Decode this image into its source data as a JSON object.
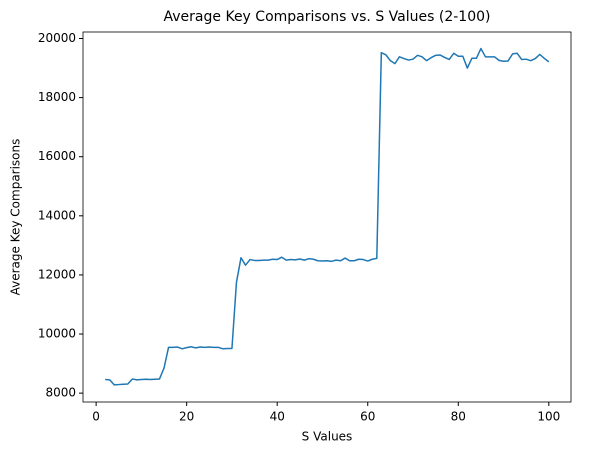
{
  "chart_data": {
    "type": "line",
    "title": "Average Key Comparisons vs. S Values (2-100)",
    "x_label": "S Values",
    "y_label": "Average Key Comparisons",
    "x": [
      2,
      3,
      4,
      5,
      6,
      7,
      8,
      9,
      10,
      11,
      12,
      13,
      14,
      15,
      16,
      17,
      18,
      19,
      20,
      21,
      22,
      23,
      24,
      25,
      26,
      27,
      28,
      29,
      30,
      31,
      32,
      33,
      34,
      35,
      36,
      37,
      38,
      39,
      40,
      41,
      42,
      43,
      44,
      45,
      46,
      47,
      48,
      49,
      50,
      51,
      52,
      53,
      54,
      55,
      56,
      57,
      58,
      59,
      60,
      61,
      62,
      63,
      64,
      65,
      66,
      67,
      68,
      69,
      70,
      71,
      72,
      73,
      74,
      75,
      76,
      77,
      78,
      79,
      80,
      81,
      82,
      83,
      84,
      85,
      86,
      87,
      88,
      89,
      90,
      91,
      92,
      93,
      94,
      95,
      96,
      97,
      98,
      99,
      100
    ],
    "series": [
      {
        "color": "#1f77b4",
        "values": [
          8460,
          8450,
          8280,
          8290,
          8300,
          8310,
          8480,
          8450,
          8460,
          8470,
          8460,
          8470,
          8480,
          8850,
          9550,
          9550,
          9560,
          9500,
          9540,
          9570,
          9530,
          9560,
          9550,
          9560,
          9550,
          9550,
          9500,
          9510,
          9510,
          11750,
          12580,
          12330,
          12520,
          12490,
          12490,
          12500,
          12500,
          12530,
          12520,
          12600,
          12500,
          12520,
          12510,
          12540,
          12500,
          12550,
          12530,
          12480,
          12470,
          12480,
          12460,
          12500,
          12480,
          12570,
          12480,
          12480,
          12530,
          12520,
          12470,
          12530,
          12560,
          19520,
          19450,
          19250,
          19150,
          19380,
          19320,
          19270,
          19300,
          19430,
          19380,
          19250,
          19350,
          19430,
          19440,
          19360,
          19290,
          19500,
          19400,
          19400,
          19000,
          19330,
          19330,
          19660,
          19380,
          19380,
          19380,
          19260,
          19230,
          19240,
          19480,
          19500,
          19290,
          19300,
          19250,
          19320,
          19460,
          19330,
          19210
        ]
      }
    ],
    "xlim": [
      -2.9,
      104.9
    ],
    "ylim": [
      7700,
      20220
    ],
    "xticks": [
      0,
      20,
      40,
      60,
      80,
      100
    ],
    "yticks": [
      8000,
      10000,
      12000,
      14000,
      16000,
      18000,
      20000
    ],
    "grid": false
  }
}
